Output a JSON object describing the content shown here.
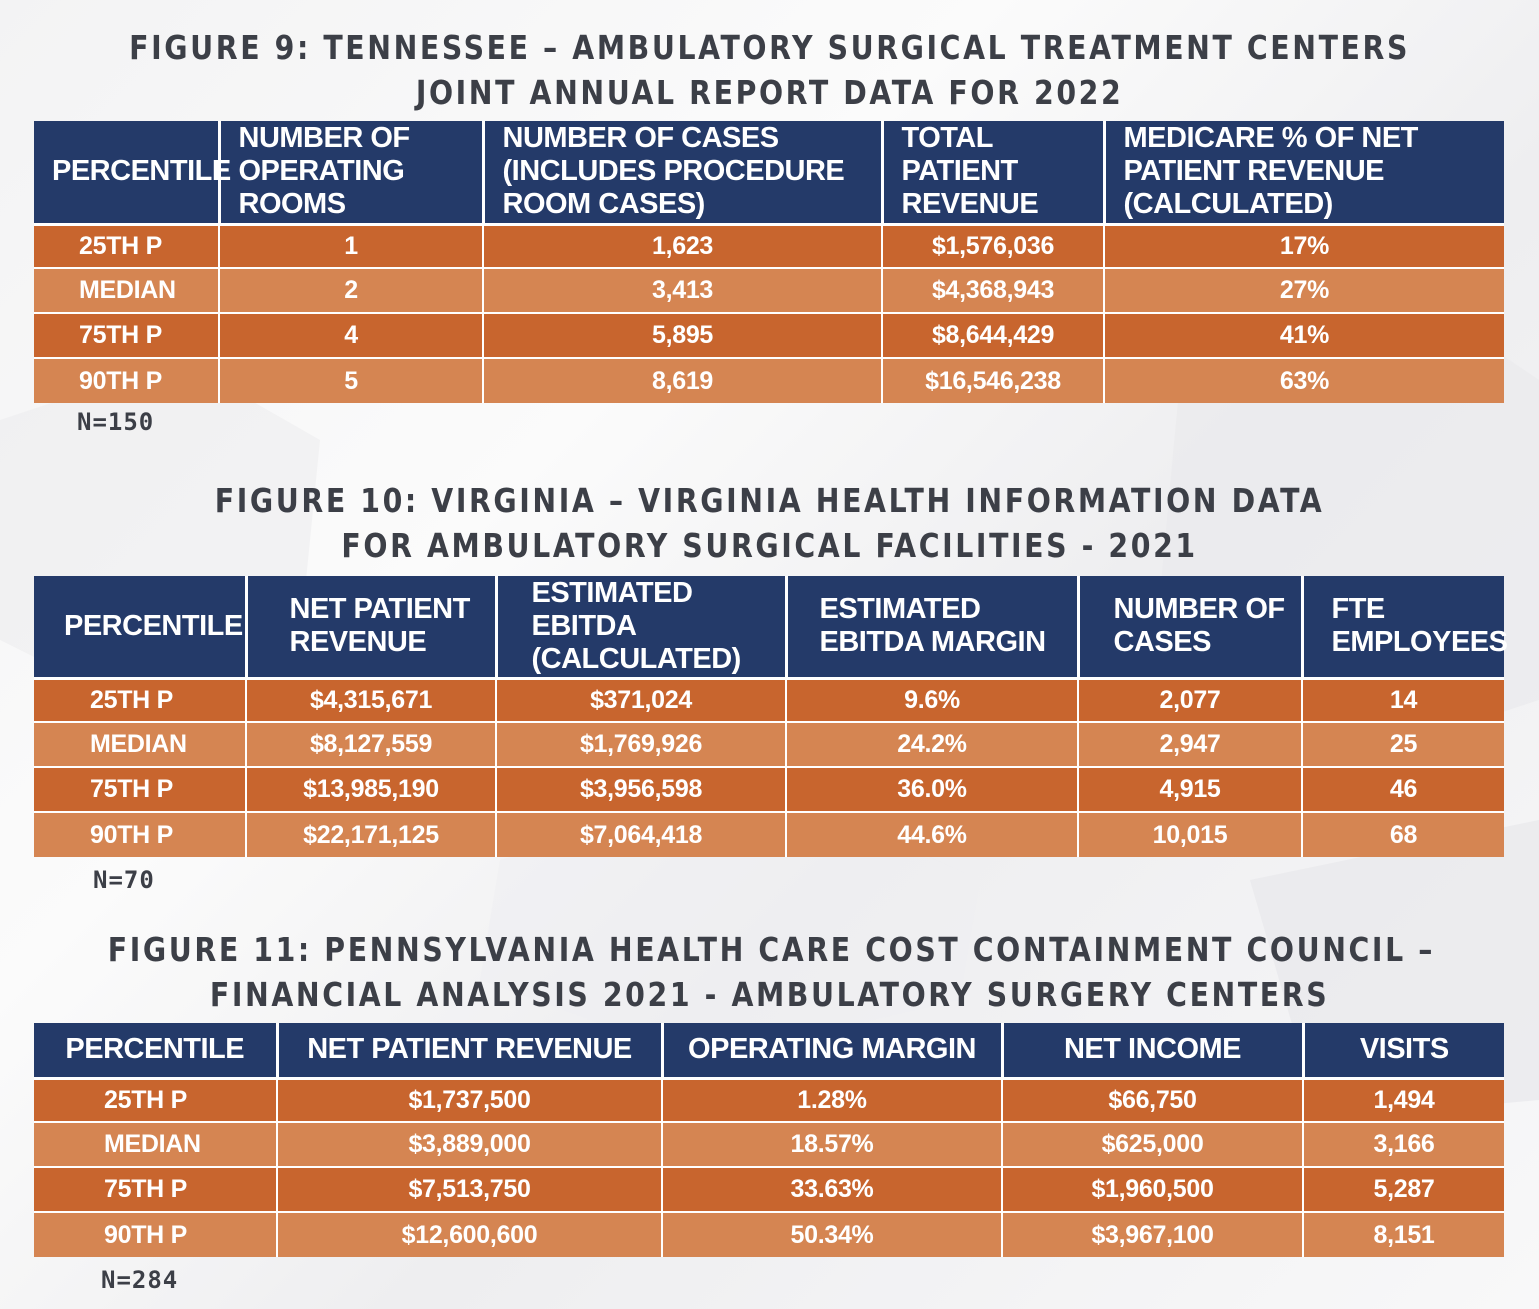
{
  "figures": [
    {
      "title_line1": "FIGURE 9: TENNESSEE – AMBULATORY SURGICAL TREATMENT CENTERS",
      "title_line2": "JOINT ANNUAL REPORT DATA FOR 2022",
      "headers": [
        "PERCENTILE",
        "NUMBER OF OPERATING ROOMS",
        "NUMBER OF CASES (INCLUDES PROCEDURE ROOM CASES)",
        "TOTAL PATIENT REVENUE",
        "MEDICARE % OF NET PATIENT REVENUE (CALCULATED)"
      ],
      "rows": [
        [
          "25TH P",
          "1",
          "1,623",
          "$1,576,036",
          "17%"
        ],
        [
          "MEDIAN",
          "2",
          "3,413",
          "$4,368,943",
          "27%"
        ],
        [
          "75TH P",
          "4",
          "5,895",
          "$8,644,429",
          "41%"
        ],
        [
          "90TH P",
          "5",
          "8,619",
          "$16,546,238",
          "63%"
        ]
      ],
      "n_label": "N=150"
    },
    {
      "title_line1": "FIGURE 10: VIRGINIA – VIRGINIA HEALTH INFORMATION DATA",
      "title_line2": "FOR AMBULATORY SURGICAL FACILITIES - 2021",
      "headers": [
        "PERCENTILE",
        "NET PATIENT REVENUE",
        "ESTIMATED EBITDA (CALCULATED)",
        "ESTIMATED EBITDA MARGIN",
        "NUMBER OF CASES",
        "FTE EMPLOYEES"
      ],
      "rows": [
        [
          "25TH P",
          "$4,315,671",
          "$371,024",
          "9.6%",
          "2,077",
          "14"
        ],
        [
          "MEDIAN",
          "$8,127,559",
          "$1,769,926",
          "24.2%",
          "2,947",
          "25"
        ],
        [
          "75TH P",
          "$13,985,190",
          "$3,956,598",
          "36.0%",
          "4,915",
          "46"
        ],
        [
          "90TH P",
          "$22,171,125",
          "$7,064,418",
          "44.6%",
          "10,015",
          "68"
        ]
      ],
      "n_label": "N=70"
    },
    {
      "title_line1": "FIGURE 11: PENNSYLVANIA HEALTH CARE COST CONTAINMENT COUNCIL –",
      "title_line2": "FINANCIAL ANALYSIS 2021 - AMBULATORY SURGERY CENTERS",
      "headers": [
        "PERCENTILE",
        "NET PATIENT REVENUE",
        "OPERATING MARGIN",
        "NET INCOME",
        "VISITS"
      ],
      "rows": [
        [
          "25TH P",
          "$1,737,500",
          "1.28%",
          "$66,750",
          "1,494"
        ],
        [
          "MEDIAN",
          "$3,889,000",
          "18.57%",
          "$625,000",
          "3,166"
        ],
        [
          "75TH P",
          "$7,513,750",
          "33.63%",
          "$1,960,500",
          "5,287"
        ],
        [
          "90TH P",
          "$12,600,600",
          "50.34%",
          "$3,967,100",
          "8,151"
        ]
      ],
      "n_label": "N=284"
    }
  ],
  "colors": {
    "header_bg": "#243a69",
    "row_dark": "#c8652e",
    "row_light": "#d58552",
    "title_text": "#3c3f47"
  }
}
